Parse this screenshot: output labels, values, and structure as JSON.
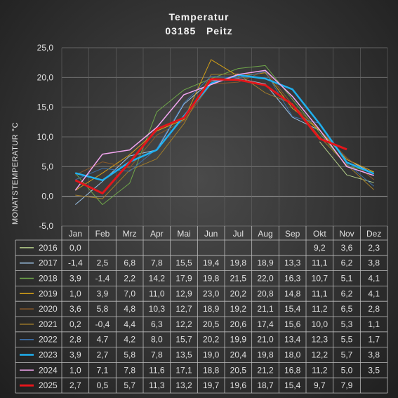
{
  "title": "Temperatur",
  "subtitle": "03185   Peitz",
  "chart_data": {
    "type": "line",
    "title": "Temperatur",
    "subtitle": "03185   Peitz",
    "ylabel": "MONATSTEMPERATUR °C",
    "ylim": [
      -5,
      25
    ],
    "yticks": [
      "25,0",
      "20,0",
      "15,0",
      "10,0",
      "5,0",
      "0,0",
      "-5,0"
    ],
    "grid": true,
    "legend": "data table below chart",
    "categories": [
      "Jan",
      "Feb",
      "Mrz",
      "Apr",
      "Mai",
      "Jun",
      "Jul",
      "Aug",
      "Sep",
      "Okt",
      "Nov",
      "Dez"
    ],
    "series": [
      {
        "name": "2016",
        "color": "#b5cf8a",
        "width": 1,
        "values": [
          0.0,
          null,
          null,
          null,
          null,
          null,
          null,
          null,
          null,
          9.2,
          3.6,
          2.3
        ],
        "labels": [
          "0,0",
          "",
          "",
          "",
          "",
          "",
          "",
          "",
          "",
          "9,2",
          "3,6",
          "2,3"
        ]
      },
      {
        "name": "2017",
        "color": "#9dc3e6",
        "width": 1,
        "values": [
          -1.4,
          2.5,
          6.8,
          7.8,
          15.5,
          19.4,
          19.8,
          18.9,
          13.3,
          11.1,
          6.2,
          3.8
        ],
        "labels": [
          "-1,4",
          "2,5",
          "6,8",
          "7,8",
          "15,5",
          "19,4",
          "19,8",
          "18,9",
          "13,3",
          "11,1",
          "6,2",
          "3,8"
        ]
      },
      {
        "name": "2018",
        "color": "#6fa64a",
        "width": 1,
        "values": [
          3.9,
          -1.4,
          2.2,
          14.2,
          17.9,
          19.8,
          21.5,
          22.0,
          16.3,
          10.7,
          5.1,
          4.1
        ],
        "labels": [
          "3,9",
          "-1,4",
          "2,2",
          "14,2",
          "17,9",
          "19,8",
          "21,5",
          "22,0",
          "16,3",
          "10,7",
          "5,1",
          "4,1"
        ]
      },
      {
        "name": "2019",
        "color": "#d4a017",
        "width": 1,
        "values": [
          1.0,
          3.9,
          7.0,
          11.0,
          12.9,
          23.0,
          20.2,
          20.8,
          14.8,
          11.1,
          6.2,
          4.1
        ],
        "labels": [
          "1,0",
          "3,9",
          "7,0",
          "11,0",
          "12,9",
          "23,0",
          "20,2",
          "20,8",
          "14,8",
          "11,1",
          "6,2",
          "4,1"
        ]
      },
      {
        "name": "2020",
        "color": "#8a5a2b",
        "width": 1,
        "values": [
          3.6,
          5.8,
          4.8,
          10.3,
          12.7,
          18.9,
          19.2,
          21.1,
          15.4,
          11.2,
          6.5,
          2.8
        ],
        "labels": [
          "3,6",
          "5,8",
          "4,8",
          "10,3",
          "12,7",
          "18,9",
          "19,2",
          "21,1",
          "15,4",
          "11,2",
          "6,5",
          "2,8"
        ]
      },
      {
        "name": "2021",
        "color": "#a07c2a",
        "width": 1,
        "values": [
          0.2,
          -0.4,
          4.4,
          6.3,
          12.2,
          20.5,
          20.6,
          17.4,
          15.6,
          10.0,
          5.3,
          1.1
        ],
        "labels": [
          "0,2",
          "-0,4",
          "4,4",
          "6,3",
          "12,2",
          "20,5",
          "20,6",
          "17,4",
          "15,6",
          "10,0",
          "5,3",
          "1,1"
        ]
      },
      {
        "name": "2022",
        "color": "#3d6fa8",
        "width": 1,
        "values": [
          2.8,
          4.7,
          4.2,
          8.0,
          15.7,
          20.2,
          19.9,
          21.0,
          13.4,
          12.3,
          5.5,
          1.7
        ],
        "labels": [
          "2,8",
          "4,7",
          "4,2",
          "8,0",
          "15,7",
          "20,2",
          "19,9",
          "21,0",
          "13,4",
          "12,3",
          "5,5",
          "1,7"
        ]
      },
      {
        "name": "2023",
        "color": "#1fb0f0",
        "width": 2.5,
        "values": [
          3.9,
          2.7,
          5.8,
          7.8,
          13.5,
          19.0,
          20.4,
          19.8,
          18.0,
          12.2,
          5.7,
          3.8
        ],
        "labels": [
          "3,9",
          "2,7",
          "5,8",
          "7,8",
          "13,5",
          "19,0",
          "20,4",
          "19,8",
          "18,0",
          "12,2",
          "5,7",
          "3,8"
        ]
      },
      {
        "name": "2024",
        "color": "#f3a6f0",
        "width": 1.5,
        "values": [
          1.0,
          7.1,
          7.8,
          11.6,
          17.1,
          18.8,
          20.5,
          21.2,
          16.8,
          11.2,
          5.0,
          3.5
        ],
        "labels": [
          "1,0",
          "7,1",
          "7,8",
          "11,6",
          "17,1",
          "18,8",
          "20,5",
          "21,2",
          "16,8",
          "11,2",
          "5,0",
          "3,5"
        ]
      },
      {
        "name": "2025",
        "color": "#e3161b",
        "width": 3,
        "values": [
          2.7,
          0.5,
          5.7,
          11.3,
          13.2,
          19.7,
          19.6,
          18.7,
          15.4,
          9.7,
          7.9,
          null
        ],
        "labels": [
          "2,7",
          "0,5",
          "5,7",
          "11,3",
          "13,2",
          "19,7",
          "19,6",
          "18,7",
          "15,4",
          "9,7",
          "7,9",
          ""
        ]
      }
    ]
  }
}
